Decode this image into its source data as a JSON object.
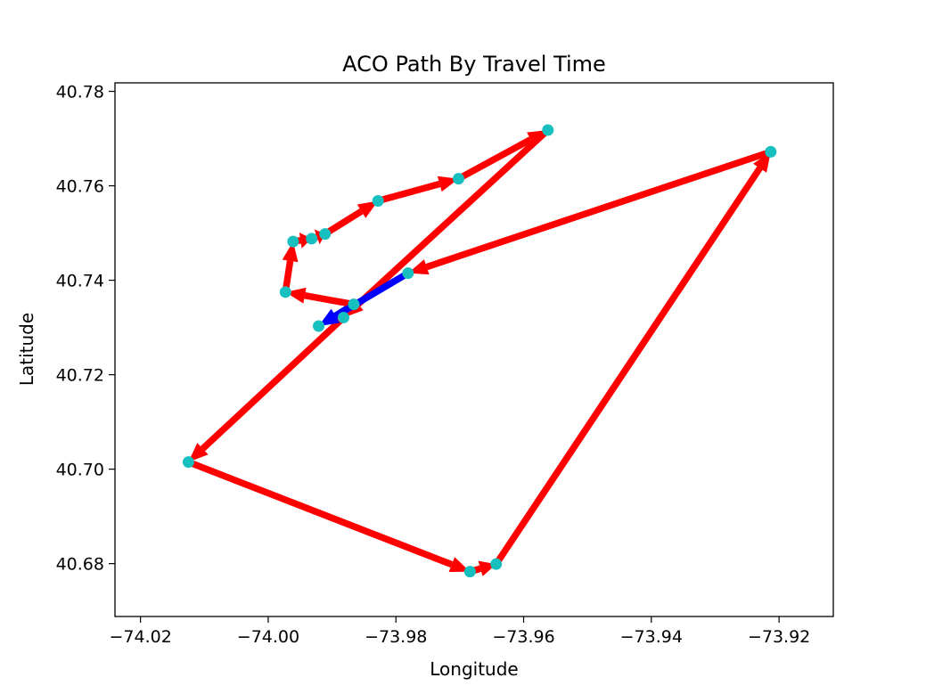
{
  "chart_data": {
    "type": "line",
    "title": "ACO Path By Travel Time",
    "xlabel": "Longitude",
    "ylabel": "Latitude",
    "xlim": [
      -74.024,
      -73.9115
    ],
    "ylim": [
      40.6688,
      40.7818
    ],
    "xticks": [
      -74.02,
      -74.0,
      -73.98,
      -73.96,
      -73.94,
      -73.92
    ],
    "xtick_labels": [
      "−74.02",
      "−74.00",
      "−73.98",
      "−73.96",
      "−73.94",
      "−73.92"
    ],
    "yticks": [
      40.68,
      40.7,
      40.72,
      40.74,
      40.76,
      40.78
    ],
    "ytick_labels": [
      "40.68",
      "40.70",
      "40.72",
      "40.74",
      "40.76",
      "40.78"
    ],
    "grid": false,
    "colors": {
      "path": "#ff0000",
      "start_segment": "#0000ff",
      "points": "#17bfbf"
    },
    "points": [
      {
        "x": -73.9562,
        "y": 40.7718
      },
      {
        "x": -73.9213,
        "y": 40.7672
      },
      {
        "x": -73.9702,
        "y": 40.7615
      },
      {
        "x": -73.9828,
        "y": 40.7568
      },
      {
        "x": -73.9911,
        "y": 40.7498
      },
      {
        "x": -73.9932,
        "y": 40.7488
      },
      {
        "x": -73.9961,
        "y": 40.7482
      },
      {
        "x": -73.9781,
        "y": 40.7415
      },
      {
        "x": -73.9973,
        "y": 40.7375
      },
      {
        "x": -73.9866,
        "y": 40.7349
      },
      {
        "x": -73.9882,
        "y": 40.7321
      },
      {
        "x": -73.9921,
        "y": 40.7303
      },
      {
        "x": -74.0125,
        "y": 40.7015
      },
      {
        "x": -73.9643,
        "y": 40.6799
      },
      {
        "x": -73.9684,
        "y": 40.6783
      }
    ],
    "path": [
      {
        "from": [
          -73.9866,
          40.7349
        ],
        "to": [
          -73.9921,
          40.7303
        ],
        "color": "blue"
      },
      {
        "from": [
          -73.9866,
          40.7349
        ],
        "to": [
          -73.9973,
          40.7375
        ],
        "color": "red"
      },
      {
        "from": [
          -73.9973,
          40.7375
        ],
        "to": [
          -73.9961,
          40.7482
        ],
        "color": "red"
      },
      {
        "from": [
          -73.9961,
          40.7482
        ],
        "to": [
          -73.9932,
          40.7488
        ],
        "color": "red"
      },
      {
        "from": [
          -73.9932,
          40.7488
        ],
        "to": [
          -73.9911,
          40.7498
        ],
        "color": "red"
      },
      {
        "from": [
          -73.9911,
          40.7498
        ],
        "to": [
          -73.9828,
          40.7568
        ],
        "color": "red"
      },
      {
        "from": [
          -73.9828,
          40.7568
        ],
        "to": [
          -73.9702,
          40.7615
        ],
        "color": "red"
      },
      {
        "from": [
          -73.9702,
          40.7615
        ],
        "to": [
          -73.9562,
          40.7718
        ],
        "color": "red"
      },
      {
        "from": [
          -73.9562,
          40.7718
        ],
        "to": [
          -73.9882,
          40.7321
        ],
        "color": "red"
      },
      {
        "from": [
          -73.9882,
          40.7321
        ],
        "to": [
          -74.0125,
          40.7015
        ],
        "color": "red"
      },
      {
        "from": [
          -74.0125,
          40.7015
        ],
        "to": [
          -73.9684,
          40.6783
        ],
        "color": "red"
      },
      {
        "from": [
          -73.9684,
          40.6783
        ],
        "to": [
          -73.9643,
          40.6799
        ],
        "color": "red"
      },
      {
        "from": [
          -73.9643,
          40.6799
        ],
        "to": [
          -73.9213,
          40.7672
        ],
        "color": "red"
      },
      {
        "from": [
          -73.9213,
          40.7672
        ],
        "to": [
          -73.9781,
          40.7415
        ],
        "color": "red"
      },
      {
        "from": [
          -73.9781,
          40.7415
        ],
        "to": [
          -73.9921,
          40.7303
        ],
        "color": "blue"
      }
    ]
  }
}
